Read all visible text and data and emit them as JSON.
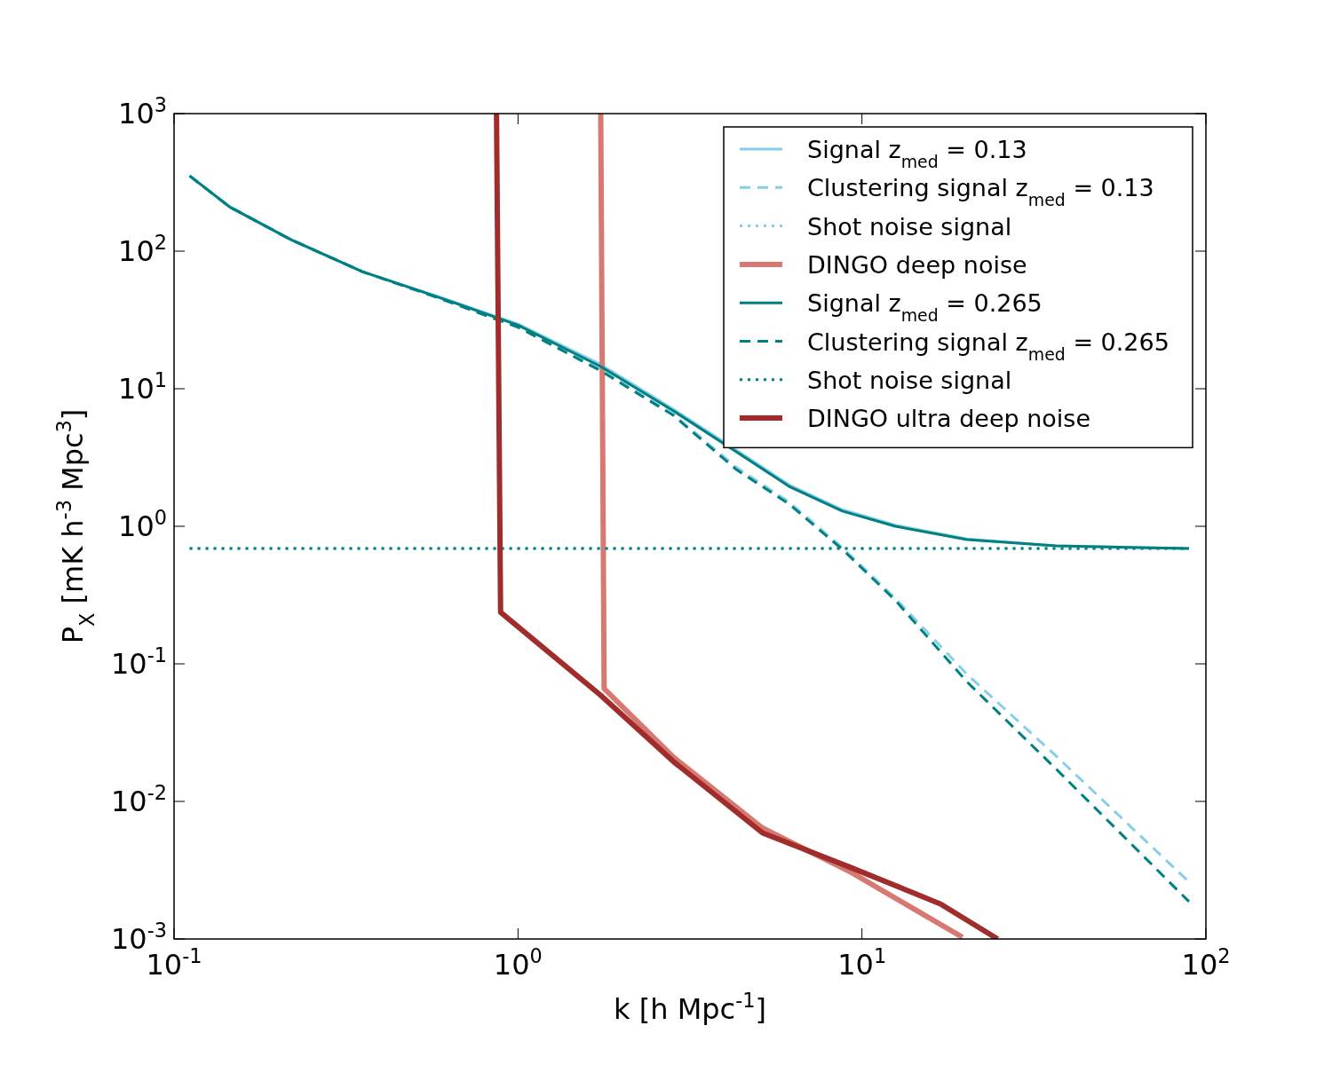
{
  "chart_data": {
    "type": "line",
    "xlabel": "k [h Mpc$^{-1}$]",
    "ylabel": "P$_{X}$ [mK h$^{-3}$ Mpc$^{3}$]",
    "log": "xy",
    "xlim": [
      0.1,
      100
    ],
    "ylim": [
      0.001,
      1000
    ],
    "xticks": [
      {
        "value": 0.1,
        "label": "10$^{-1}$"
      },
      {
        "value": 1,
        "label": "10$^{0}$"
      },
      {
        "value": 10,
        "label": "10$^{1}$"
      },
      {
        "value": 100,
        "label": "10$^{2}$"
      }
    ],
    "yticks": [
      {
        "value": 0.001,
        "label": "10$^{-3}$"
      },
      {
        "value": 0.01,
        "label": "10$^{-2}$"
      },
      {
        "value": 0.1,
        "label": "10$^{-1}$"
      },
      {
        "value": 1,
        "label": "10$^{0}$"
      },
      {
        "value": 10,
        "label": "10$^{1}$"
      },
      {
        "value": 100,
        "label": "10$^{2}$"
      },
      {
        "value": 1000,
        "label": "10$^{3}$"
      }
    ],
    "grid": false,
    "legend": "top right",
    "series": [
      {
        "name": "Signal z$_{med}$ = 0.13",
        "color": "#87ceeb",
        "line_style": "solid",
        "x": [
          0.111,
          0.145,
          0.219,
          0.353,
          0.569,
          1.0,
          1.74,
          2.83,
          4.3,
          6.14,
          8.77,
          12.5,
          20.2,
          36.6,
          89.3
        ],
        "values": [
          353,
          210,
          121,
          71,
          48,
          29.5,
          15,
          7.1,
          3.6,
          2.0,
          1.32,
          1.02,
          0.81,
          0.72,
          0.69
        ]
      },
      {
        "name": "Clustering signal z$_{med}$ = 0.13",
        "color": "#87ceeb",
        "line_style": "dashed",
        "x": [
          0.111,
          0.145,
          0.219,
          0.353,
          0.569,
          1.0,
          1.74,
          2.83,
          4.3,
          6.14,
          8.77,
          12.5,
          20.2,
          36.6,
          89.3
        ],
        "values": [
          353,
          210,
          121,
          71,
          47,
          28,
          13.8,
          6.5,
          2.7,
          1.5,
          0.7,
          0.3,
          0.084,
          0.0215,
          0.0026
        ]
      },
      {
        "name": "Shot noise signal",
        "color": "#87ceeb",
        "line_style": "dotted",
        "x": [
          0.111,
          89.3
        ],
        "values": [
          0.69,
          0.69
        ]
      },
      {
        "name": "DINGO deep  noise",
        "color": "#d87873",
        "line_style": "solid",
        "x": [
          1.74,
          1.78,
          2.83,
          5.14,
          9.3,
          19.6
        ],
        "values": [
          1000,
          0.066,
          0.021,
          0.0064,
          0.00305,
          0.00103
        ]
      },
      {
        "name": "Signal z$_{med}$ = 0.265",
        "color": "#008080",
        "line_style": "solid",
        "x": [
          0.111,
          0.145,
          0.219,
          0.353,
          0.569,
          1.0,
          1.74,
          2.83,
          4.3,
          6.14,
          8.77,
          12.5,
          20.2,
          36.6,
          89.3
        ],
        "values": [
          353,
          210,
          121,
          71,
          47.5,
          29,
          14.5,
          6.9,
          3.5,
          1.95,
          1.29,
          1.0,
          0.8,
          0.72,
          0.69
        ]
      },
      {
        "name": "Clustering signal z$_{med}$ = 0.265",
        "color": "#008080",
        "line_style": "dashed",
        "x": [
          0.111,
          0.145,
          0.219,
          0.353,
          0.569,
          1.0,
          1.74,
          2.83,
          4.3,
          6.14,
          8.77,
          12.5,
          20.2,
          36.6,
          89.3
        ],
        "values": [
          353,
          210,
          121,
          71,
          47,
          28,
          13.5,
          6.4,
          2.6,
          1.45,
          0.68,
          0.29,
          0.074,
          0.0173,
          0.00187
        ]
      },
      {
        "name": "Shot noise signal",
        "color": "#008080",
        "line_style": "dotted",
        "x": [
          0.111,
          89.3
        ],
        "values": [
          0.69,
          0.69
        ]
      },
      {
        "name": "DINGO ultra deep  noise",
        "color": "#a02c2c",
        "line_style": "solid",
        "x": [
          0.866,
          0.89,
          1.74,
          2.83,
          5.14,
          9.3,
          16.9,
          24.8
        ],
        "values": [
          1000,
          0.237,
          0.059,
          0.0195,
          0.0059,
          0.0033,
          0.0018,
          0.001
        ]
      }
    ]
  }
}
